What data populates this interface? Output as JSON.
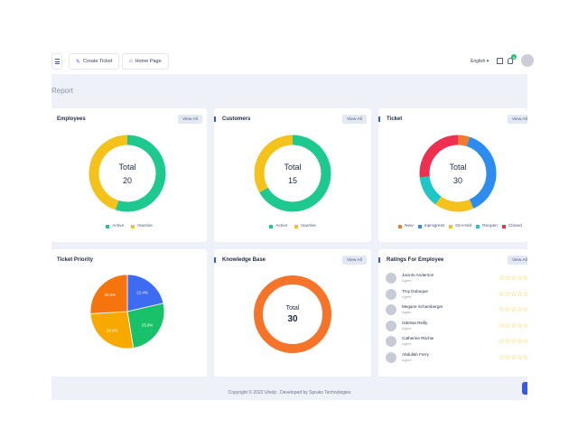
{
  "header": {
    "create_ticket": "Create Ticket",
    "home_page": "Home Page",
    "language": "English ▾",
    "notification_count": "4"
  },
  "page": {
    "title": "Report"
  },
  "employees": {
    "title": "Employees",
    "view_all": "View All",
    "total_label": "Total",
    "total": "20",
    "legend": [
      {
        "label": "Active",
        "color": "#1dc98e"
      },
      {
        "label": "Inactive",
        "color": "#f5c21b"
      }
    ],
    "chart_data": {
      "type": "pie",
      "categories": [
        "Active",
        "Inactive"
      ],
      "values": [
        11,
        9
      ]
    }
  },
  "customers": {
    "title": "Customers",
    "view_all": "View All",
    "total_label": "Total",
    "total": "15",
    "legend": [
      {
        "label": "Active",
        "color": "#1dc98e"
      },
      {
        "label": "Inactive",
        "color": "#f5c21b"
      }
    ],
    "chart_data": {
      "type": "pie",
      "categories": [
        "Active",
        "Inactive"
      ],
      "values": [
        10,
        5
      ]
    }
  },
  "ticket": {
    "title": "Ticket",
    "view_all": "View All",
    "total_label": "Total",
    "total": "30",
    "legend": [
      {
        "label": "New",
        "color": "#f07b2a"
      },
      {
        "label": "Inprogress",
        "color": "#2d8cf0"
      },
      {
        "label": "On-Hold",
        "color": "#f5c21b"
      },
      {
        "label": "Reopen",
        "color": "#1fc6c6"
      },
      {
        "label": "Closed",
        "color": "#ef2f4f"
      }
    ],
    "chart_data": {
      "type": "pie",
      "categories": [
        "New",
        "Inprogress",
        "On-Hold",
        "Reopen",
        "Closed"
      ],
      "values": [
        1.5,
        11.5,
        5,
        4,
        8
      ]
    }
  },
  "ticket_priority": {
    "title": "Ticket Priority",
    "labels": [
      "21.4%",
      "25.9%",
      "26.6%",
      "25.9%"
    ],
    "chart_data": {
      "type": "pie",
      "values": [
        21.4,
        25.9,
        26.6,
        25.9
      ],
      "colors": [
        "#3d6bf2",
        "#19c26a",
        "#f7a900",
        "#f5740d"
      ]
    }
  },
  "knowledge_base": {
    "title": "Knowledge Base",
    "view_all": "View All",
    "total_label": "Total",
    "total": "30",
    "chart_data": {
      "type": "pie",
      "values": [
        30
      ],
      "colors": [
        "#f5742a"
      ]
    }
  },
  "ratings": {
    "title": "Ratings For Employee",
    "view_all": "View All",
    "stars": "☆☆☆☆☆",
    "rows": [
      {
        "name": "Jacinto Anderson",
        "role": "Agent"
      },
      {
        "name": "Troy Dubuque",
        "role": "Agent"
      },
      {
        "name": "Megane Schamberger",
        "role": "Agent"
      },
      {
        "name": "Odessa Reilly",
        "role": "Agent"
      },
      {
        "name": "Catherine Ritchie",
        "role": "Agent"
      },
      {
        "name": "Abdullah Ferry",
        "role": "Agent"
      }
    ]
  },
  "footer": {
    "text": "Copyright © 2022 Uhelp . Developed by Spruko Technologies"
  }
}
